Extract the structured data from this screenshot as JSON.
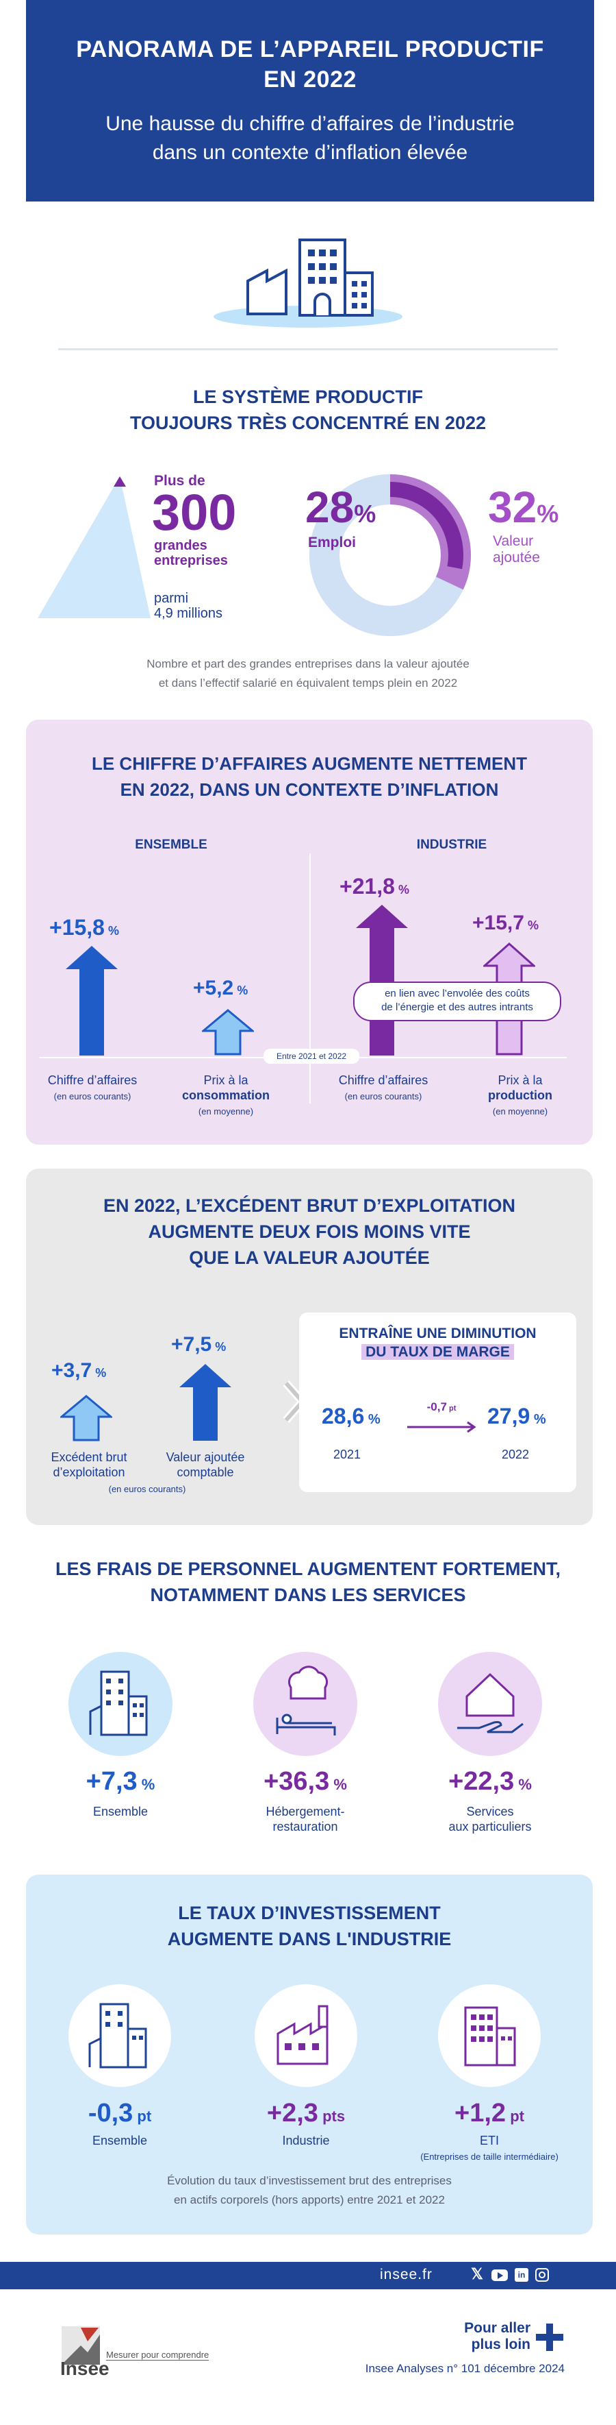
{
  "header": {
    "title_line1": "PANORAMA DE L’APPAREIL PRODUCTIF",
    "title_line2": "EN 2022",
    "subtitle_line1": "Une hausse du chiffre d’affaires de l’industrie",
    "subtitle_line2": "dans un contexte d’inflation élevée"
  },
  "s1": {
    "title_line1": "LE SYSTÈME PRODUCTIF",
    "title_line2": "TOUJOURS TRÈS CONCENTRÉ EN 2022",
    "plus_de": "Plus de",
    "count": "300",
    "count_label_1": "grandes",
    "count_label_2": "entreprises",
    "parmi": "parmi",
    "total": "4,9 millions",
    "emploi_value": "28",
    "emploi_pct": "%",
    "emploi_label": "Emploi",
    "va_value": "32",
    "va_pct": "%",
    "va_label_1": "Valeur",
    "va_label_2": "ajoutée",
    "note_line1": "Nombre et part des grandes entreprises dans la valeur ajoutée",
    "note_line2": "et dans l’effectif salarié en équivalent temps plein en 2022"
  },
  "s2": {
    "title_line1": "LE CHIFFRE D’AFFAIRES AUGMENTE NETTEMENT",
    "title_line2": "EN 2022, DANS UN CONTEXTE D’INFLATION",
    "col_left": "ENSEMBLE",
    "col_right": "INDUSTRIE",
    "ens_ca_value": "+15,8",
    "ens_prix_value": "+5,2",
    "ind_ca_value": "+21,8",
    "ind_prix_value": "+15,7",
    "pct": "%",
    "between": "Entre 2021 et 2022",
    "pill_line1": "en lien avec l’envolée des coûts",
    "pill_line2": "de l’énergie et des autres intrants",
    "ens_ca_label": "Chiffre d’affaires",
    "ens_ca_sub": "(en euros courants)",
    "ens_prix_label_1": "Prix à la",
    "ens_prix_label_2": "consommation",
    "ens_prix_sub": "(en moyenne)",
    "ind_ca_label": "Chiffre d’affaires",
    "ind_ca_sub": "(en euros courants)",
    "ind_prix_label_1": "Prix à la",
    "ind_prix_label_2": "production",
    "ind_prix_sub": "(en moyenne)"
  },
  "s3": {
    "title_line1": "EN 2022, L’EXCÉDENT BRUT D’EXPLOITATION",
    "title_line2": "AUGMENTE DEUX FOIS MOINS VITE",
    "title_line3": "QUE LA VALEUR AJOUTÉE",
    "ebe_value": "+3,7",
    "va_value": "+7,5",
    "pct": "%",
    "ebe_label_1": "Excédent brut",
    "ebe_label_2": "d’exploitation",
    "va_label_1": "Valeur ajoutée",
    "va_label_2": "comptable",
    "sub": "(en euros courants)",
    "box_title_1": "ENTRAÎNE UNE DIMINUTION",
    "box_title_2": "DU TAUX DE MARGE",
    "rate_2021": "28,6",
    "rate_2022": "27,9",
    "delta": "-0,7",
    "delta_unit": "pt",
    "year_2021": "2021",
    "year_2022": "2022"
  },
  "s4": {
    "title_line1": "LES FRAIS DE PERSONNEL AUGMENTENT FORTEMENT,",
    "title_line2": "NOTAMMENT DANS LES SERVICES",
    "items": [
      {
        "value": "+7,3",
        "unit": "%",
        "label_1": "Ensemble",
        "label_2": ""
      },
      {
        "value": "+36,3",
        "unit": "%",
        "label_1": "Hébergement-",
        "label_2": "restauration"
      },
      {
        "value": "+22,3",
        "unit": "%",
        "label_1": "Services",
        "label_2": "aux particuliers"
      }
    ]
  },
  "s5": {
    "title_line1": "LE TAUX D’INVESTISSEMENT",
    "title_line2": "AUGMENTE DANS L'INDUSTRIE",
    "items": [
      {
        "value": "-0,3",
        "unit": "pt",
        "label_1": "Ensemble",
        "label_2": ""
      },
      {
        "value": "+2,3",
        "unit": "pts",
        "label_1": "Industrie",
        "label_2": ""
      },
      {
        "value": "+1,2",
        "unit": "pt",
        "label_1": "ETI",
        "label_2": "(Entreprises de taille intermédiaire)"
      }
    ],
    "note_line1": "Évolution du taux d’investissement brut des entreprises",
    "note_line2": "en actifs corporels (hors apports) entre 2021 et 2022"
  },
  "footer": {
    "site": "insee.fr",
    "brand": "Insee",
    "tagline": "Mesurer pour comprendre",
    "more_1": "Pour aller",
    "more_2": "plus loin",
    "pub": "Insee Analyses n° 101 décembre 2024"
  },
  "colors": {
    "navy": "#1f4496",
    "purple": "#7a2aa0",
    "lilac": "#efe0f4",
    "lightblue": "#d6ecfb",
    "blue": "#1f5cc8"
  }
}
